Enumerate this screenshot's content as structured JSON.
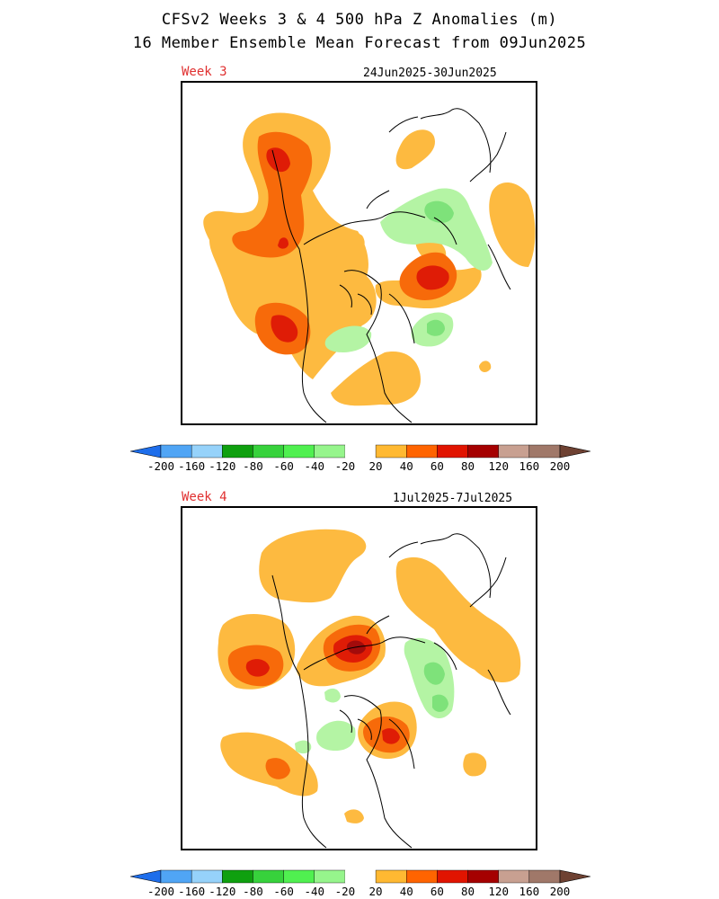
{
  "title_line1": "CFSv2 Weeks 3 & 4 500 hPa Z Anomalies (m)",
  "title_line2": "16 Member Ensemble Mean Forecast from 09Jun2025",
  "panels": [
    {
      "week": "Week 3",
      "dates": "24Jun2025-30Jun2025"
    },
    {
      "week": "Week 4",
      "dates": "1Jul2025-7Jul2025"
    }
  ],
  "colorbar": {
    "labels": [
      "-200",
      "-160",
      "-120",
      "-80",
      "-60",
      "-40",
      "-20",
      "20",
      "40",
      "60",
      "80",
      "120",
      "160",
      "200"
    ],
    "colors": [
      "#1e6eeb",
      "#50a5f5",
      "#96d2fa",
      "#0fa00f",
      "#37d23c",
      "#50f050",
      "#96f58c",
      "#ffffff",
      "#ffb932",
      "#ff6400",
      "#e11400",
      "#a50000",
      "#c8a091",
      "#a07869",
      "#6e4132"
    ],
    "unit": "m"
  },
  "anomaly_colors": {
    "pos20": "#fdba40",
    "pos40": "#f76a0a",
    "pos60": "#df1c06",
    "pos80": "#a30b0b",
    "neg20": "#b4f4a4",
    "neg40": "#7ee27a"
  }
}
